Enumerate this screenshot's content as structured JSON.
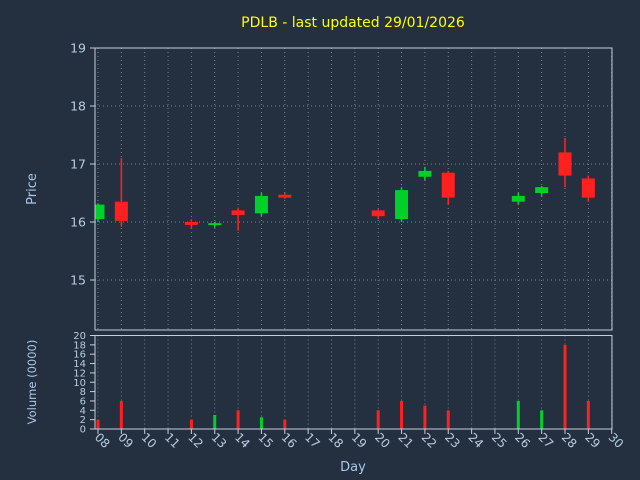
{
  "title": "PDLB - last updated 29/01/2026",
  "colors": {
    "background": "#24303f",
    "up": "#00d02a",
    "down": "#ff2020",
    "grid": "#8494a8",
    "border": "#c4cedd",
    "tick_label": "#b9cbe0",
    "axis_label": "#a9c6e8",
    "title": "#ffff00"
  },
  "price_axis": {
    "label": "Price",
    "ticks": [
      19,
      18,
      17,
      16,
      15
    ]
  },
  "volume_axis": {
    "label": "Volume (0000)",
    "ticks": [
      20,
      18,
      16,
      14,
      12,
      10,
      8,
      6,
      4,
      2,
      0
    ]
  },
  "x_axis": {
    "label": "Day",
    "ticks": [
      "08",
      "09",
      "10",
      "11",
      "12",
      "13",
      "14",
      "15",
      "16",
      "17",
      "18",
      "19",
      "20",
      "21",
      "22",
      "23",
      "24",
      "25",
      "26",
      "27",
      "28",
      "29",
      "30"
    ]
  },
  "chart_data": {
    "type": "candlestick",
    "panels": [
      "price",
      "volume"
    ],
    "volume_unit": "0000",
    "price_range": [
      15,
      19
    ],
    "volume_range": [
      0,
      20
    ],
    "candles": [
      {
        "day": 8,
        "open": 16.05,
        "high": 16.32,
        "low": 16.0,
        "close": 16.3,
        "volume": 2.0,
        "volume_dir": "down"
      },
      {
        "day": 9,
        "open": 16.35,
        "high": 17.1,
        "low": 15.92,
        "close": 16.02,
        "volume": 6.0,
        "volume_dir": "down"
      },
      {
        "day": 12,
        "open": 16.0,
        "high": 16.05,
        "low": 15.88,
        "close": 15.95,
        "volume": 2.0,
        "volume_dir": "down"
      },
      {
        "day": 13,
        "open": 15.95,
        "high": 16.0,
        "low": 15.9,
        "close": 15.98,
        "volume": 3.0,
        "volume_dir": "up"
      },
      {
        "day": 14,
        "open": 16.2,
        "high": 16.25,
        "low": 15.85,
        "close": 16.12,
        "volume": 4.0,
        "volume_dir": "down"
      },
      {
        "day": 15,
        "open": 16.15,
        "high": 16.5,
        "low": 16.1,
        "close": 16.45,
        "volume": 2.5,
        "volume_dir": "up"
      },
      {
        "day": 16,
        "open": 16.47,
        "high": 16.5,
        "low": 16.4,
        "close": 16.42,
        "volume": 2.0,
        "volume_dir": "down"
      },
      {
        "day": 20,
        "open": 16.2,
        "high": 16.22,
        "low": 16.05,
        "close": 16.1,
        "volume": 4.0,
        "volume_dir": "down"
      },
      {
        "day": 21,
        "open": 16.05,
        "high": 16.6,
        "low": 16.0,
        "close": 16.55,
        "volume": 6.0,
        "volume_dir": "down"
      },
      {
        "day": 22,
        "open": 16.78,
        "high": 16.95,
        "low": 16.72,
        "close": 16.88,
        "volume": 5.0,
        "volume_dir": "down"
      },
      {
        "day": 23,
        "open": 16.85,
        "high": 16.88,
        "low": 16.3,
        "close": 16.42,
        "volume": 4.0,
        "volume_dir": "down"
      },
      {
        "day": 26,
        "open": 16.35,
        "high": 16.5,
        "low": 16.3,
        "close": 16.45,
        "volume": 6.0,
        "volume_dir": "up"
      },
      {
        "day": 27,
        "open": 16.5,
        "high": 16.62,
        "low": 16.45,
        "close": 16.6,
        "volume": 4.0,
        "volume_dir": "up"
      },
      {
        "day": 28,
        "open": 17.2,
        "high": 17.45,
        "low": 16.6,
        "close": 16.8,
        "volume": 18.0,
        "volume_dir": "down"
      },
      {
        "day": 29,
        "open": 16.75,
        "high": 16.8,
        "low": 16.35,
        "close": 16.42,
        "volume": 6.0,
        "volume_dir": "down"
      }
    ]
  }
}
